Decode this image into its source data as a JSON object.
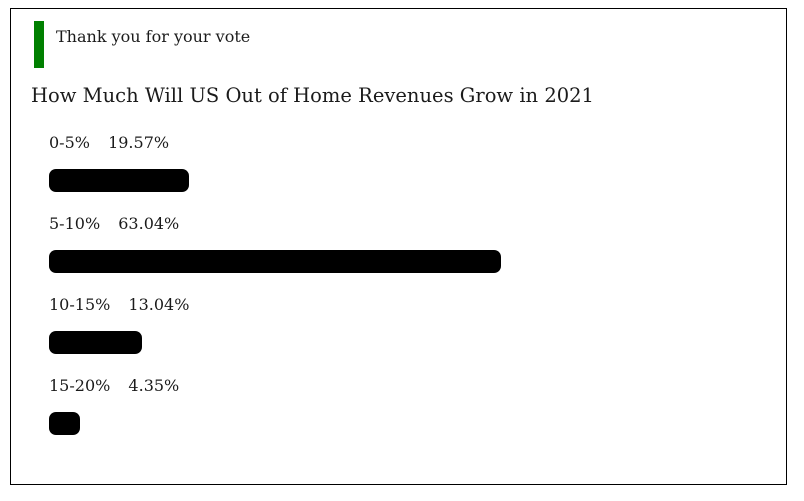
{
  "widget": {
    "confirmation": "Thank you for your vote",
    "title": "How Much Will US Out of Home Revenues Grow in 2021",
    "accent_color": "#008000",
    "bar_color": "#000000",
    "options": [
      {
        "range": "0-5%",
        "percent_label": "19.57%",
        "percent": 19.57
      },
      {
        "range": "5-10%",
        "percent_label": "63.04%",
        "percent": 63.04
      },
      {
        "range": "10-15%",
        "percent_label": "13.04%",
        "percent": 13.04
      },
      {
        "range": "15-20%",
        "percent_label": "4.35%",
        "percent": 4.35
      }
    ]
  },
  "chart_data": {
    "type": "bar",
    "orientation": "horizontal",
    "title": "How Much Will US Out of Home Revenues Grow in 2021",
    "categories": [
      "0-5%",
      "5-10%",
      "10-15%",
      "15-20%"
    ],
    "values": [
      19.57,
      63.04,
      13.04,
      4.35
    ],
    "unit": "%",
    "bar_color": "#000000",
    "value_labels_shown": true
  }
}
